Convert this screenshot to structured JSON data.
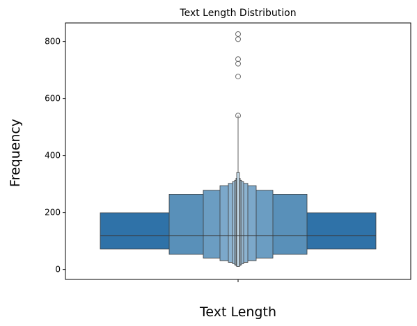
{
  "chart_data": {
    "type": "boxen",
    "title": "Text Length Distribution",
    "xlabel": "Text Length",
    "ylabel": "Frequency",
    "ylim": [
      -35,
      865
    ],
    "y_ticks": [
      0,
      200,
      400,
      600,
      800
    ],
    "color": "#2f72a8",
    "grid": false,
    "levels": [
      {
        "level": 1,
        "low": 72,
        "high": 199
      },
      {
        "level": 2,
        "low": 53,
        "high": 264
      },
      {
        "level": 3,
        "low": 40,
        "high": 278
      },
      {
        "level": 4,
        "low": 31,
        "high": 294
      },
      {
        "level": 5,
        "low": 25,
        "high": 302
      },
      {
        "level": 6,
        "low": 20,
        "high": 308
      },
      {
        "level": 7,
        "low": 16,
        "high": 313
      },
      {
        "level": 8,
        "low": 13,
        "high": 320
      },
      {
        "level": 9,
        "low": 10,
        "high": 340
      }
    ],
    "median": 119,
    "whisker_max": 540,
    "outliers": [
      540,
      677,
      722,
      738,
      808,
      826
    ]
  }
}
